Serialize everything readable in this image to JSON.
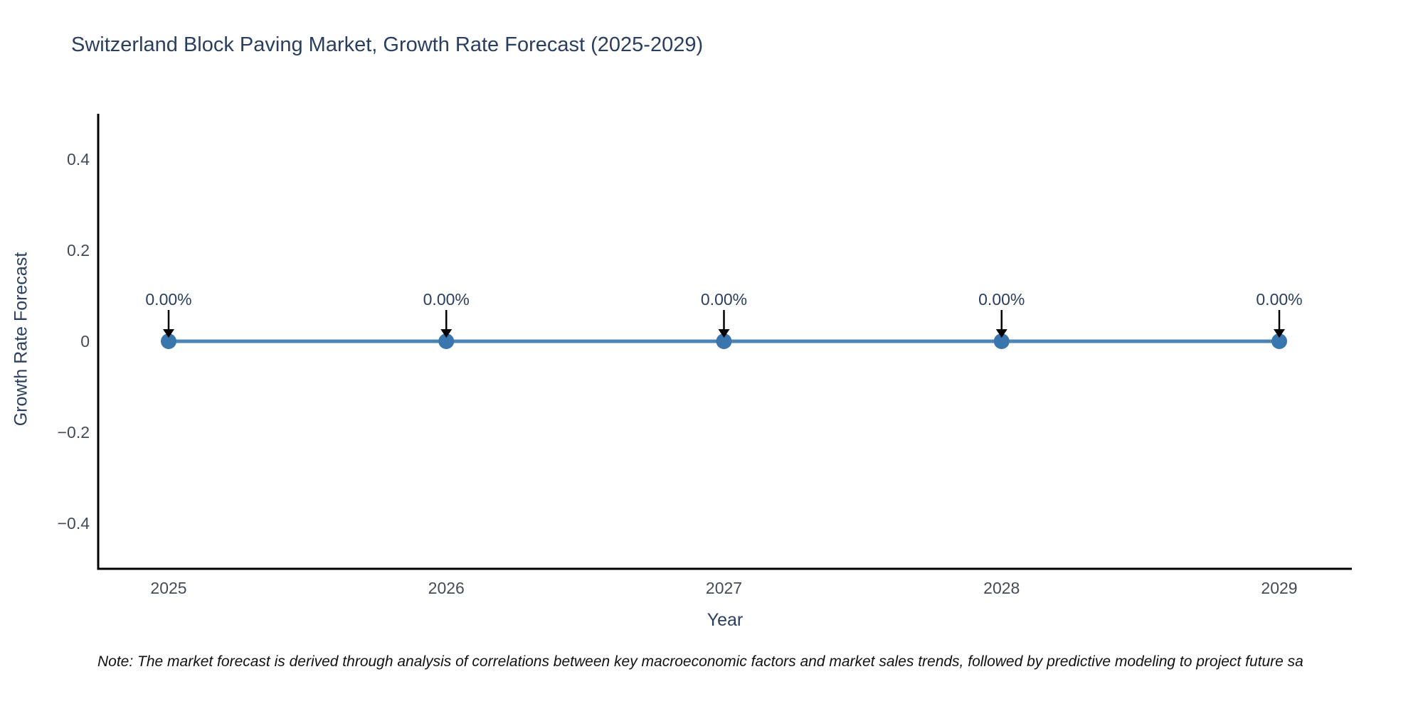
{
  "page": {
    "note": "Note: The market forecast is derived through analysis of correlations between key macroeconomic factors and market sales trends, followed by predictive modeling to project future sa"
  },
  "chart_data": {
    "type": "line",
    "title": "Switzerland Block Paving Market, Growth Rate Forecast (2025-2029)",
    "xlabel": "Year",
    "ylabel": "Growth Rate Forecast",
    "x": [
      "2025",
      "2026",
      "2027",
      "2028",
      "2029"
    ],
    "y": [
      0,
      0,
      0,
      0,
      0
    ],
    "point_labels": [
      "0.00%",
      "0.00%",
      "0.00%",
      "0.00%",
      "0.00%"
    ],
    "yticks": [
      0.4,
      0.2,
      0,
      -0.2,
      -0.4
    ],
    "ytick_labels": [
      "0.4",
      "0.2",
      "0",
      "−0.2",
      "−0.4"
    ],
    "ylim": [
      -0.5,
      0.5
    ],
    "grid": false,
    "legend_position": "none",
    "colors": {
      "line": "#4c84b8",
      "marker": "#3a76ae",
      "axis": "#000000",
      "annotation_arrow": "#000000",
      "title_text": "#2a3f5f",
      "tick_text": "#444b57",
      "note_text": "#111111"
    }
  }
}
